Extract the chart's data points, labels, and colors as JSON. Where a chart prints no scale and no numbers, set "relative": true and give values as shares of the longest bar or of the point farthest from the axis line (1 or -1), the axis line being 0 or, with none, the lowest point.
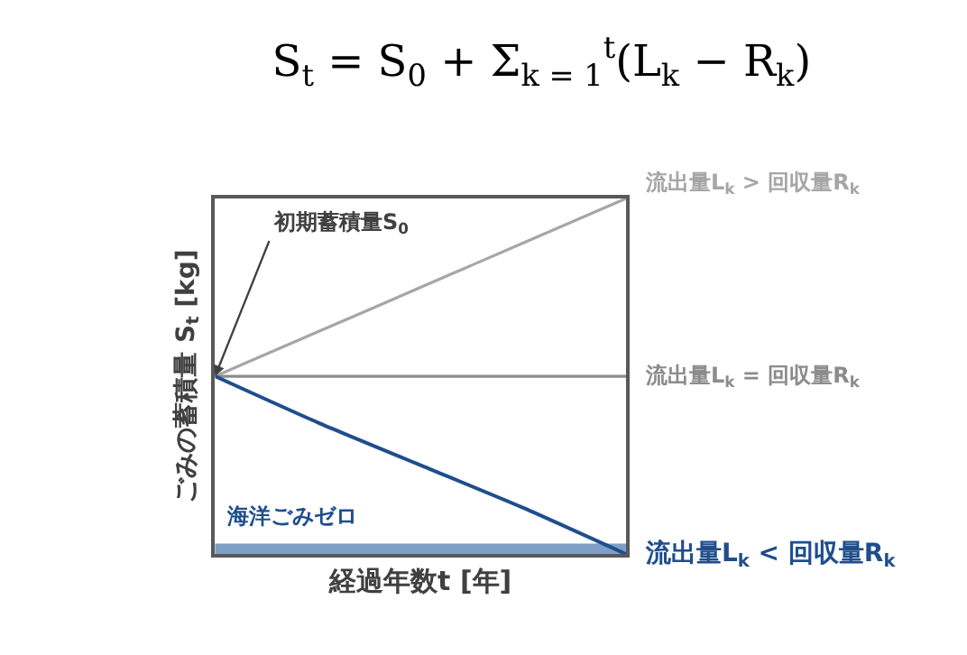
{
  "chart_data": {
    "type": "line",
    "relative": true,
    "title": "S$_{t}$ = S$_{0}$ + Σ$_{k = 1}$$^{t}$(L$_{k}$ − R$_{k}$)",
    "xlabel": "経過年数t [年]",
    "ylabel": "ごみの蓄積量 S$_{t}$ [kg]",
    "categories": [
      null,
      null,
      null,
      null,
      null
    ],
    "series": [
      {
        "name": "流出量L$_{k}$ > 回収量R$_{k}$",
        "color": "#a6a6a6",
        "values": [
          0.5,
          0.625,
          0.75,
          0.875,
          1
        ]
      },
      {
        "name": "流出量L$_{k}$ = 回収量R$_{k}$",
        "color": "#8c8c8c",
        "values": [
          0.5,
          0.5,
          0.5,
          0.5,
          0.5
        ]
      },
      {
        "name": "流出量L$_{k}$ < 回収量R$_{k}$",
        "color": "#1f4e8c",
        "values": [
          0.5,
          0.37,
          0.25,
          0.13,
          0
        ]
      }
    ],
    "bands": [
      {
        "axis": "y",
        "from": 0,
        "to": 0.03,
        "label": "海洋ごみゼロ",
        "color": "#7f9fc4"
      }
    ],
    "annotations": [
      "初期蓄積量S$_{0}$"
    ],
    "legend": false,
    "marker": "none",
    "line_style": "solid"
  }
}
